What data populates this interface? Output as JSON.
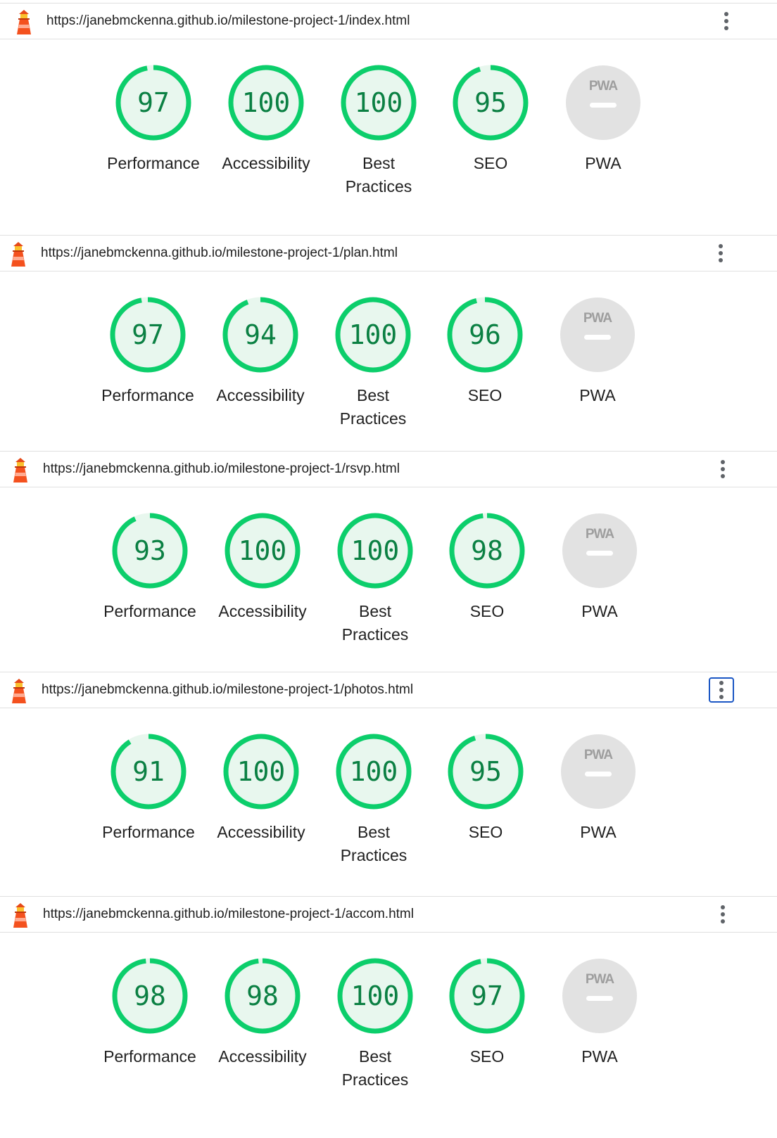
{
  "colors": {
    "pass": "#0cce6b",
    "pass_fill": "#e8f7ee",
    "pass_text": "#0b8043",
    "na_fill": "#e2e2e2",
    "na_mark": "#ffffff",
    "accent_focus": "#1a56c4"
  },
  "icons": {
    "logo": "lighthouse-icon",
    "menu": "more-vert-icon",
    "pwa": "pwa-badge-icon"
  },
  "pwa_badge_text": "PWA",
  "labels": {
    "performance": "Performance",
    "accessibility": "Accessibility",
    "best_line1": "Best",
    "best_line2": "Practices",
    "seo": "SEO",
    "pwa": "PWA"
  },
  "reports": [
    {
      "url": "https://janebmckenna.github.io/milestone-project-1/index.html",
      "scores": {
        "performance": "97",
        "accessibility": "100",
        "best_practices": "100",
        "seo": "95"
      },
      "menu_focused": false
    },
    {
      "url": "https://janebmckenna.github.io/milestone-project-1/plan.html",
      "scores": {
        "performance": "97",
        "accessibility": "94",
        "best_practices": "100",
        "seo": "96"
      },
      "menu_focused": false
    },
    {
      "url": "https://janebmckenna.github.io/milestone-project-1/rsvp.html",
      "scores": {
        "performance": "93",
        "accessibility": "100",
        "best_practices": "100",
        "seo": "98"
      },
      "menu_focused": false
    },
    {
      "url": "https://janebmckenna.github.io/milestone-project-1/photos.html",
      "scores": {
        "performance": "91",
        "accessibility": "100",
        "best_practices": "100",
        "seo": "95"
      },
      "menu_focused": true
    },
    {
      "url": "https://janebmckenna.github.io/milestone-project-1/accom.html",
      "scores": {
        "performance": "98",
        "accessibility": "98",
        "best_practices": "100",
        "seo": "97"
      },
      "menu_focused": false
    }
  ]
}
